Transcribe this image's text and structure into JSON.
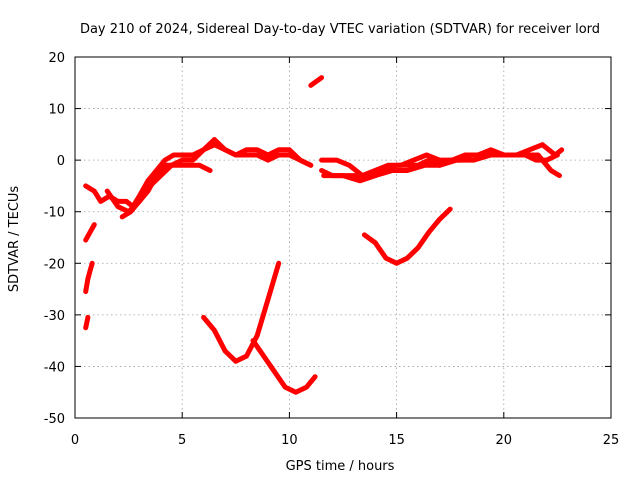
{
  "chart_data": {
    "type": "line",
    "title": "Day 210 of 2024, Sidereal Day-to-day VTEC variation (SDTVAR) for receiver lord",
    "xlabel": "GPS time / hours",
    "ylabel": "SDTVAR / TECUs",
    "xlim": [
      0,
      25
    ],
    "ylim": [
      -50,
      20
    ],
    "xticks": [
      0,
      5,
      10,
      15,
      20,
      25
    ],
    "yticks": [
      -50,
      -40,
      -30,
      -20,
      -10,
      0,
      10,
      20
    ],
    "grid": true,
    "color": "#ff0000",
    "series": [
      {
        "name": "band-early-1",
        "x": [
          0.5,
          0.9,
          1.2,
          1.6,
          2.0,
          2.4,
          2.7,
          3.0,
          3.4,
          3.8,
          4.2,
          4.6,
          5.0,
          5.5,
          6.0,
          6.5,
          7.0,
          7.5,
          8.0,
          8.5,
          9.0,
          9.5,
          10.0,
          10.5,
          11.0
        ],
        "y": [
          -5,
          -6,
          -8,
          -7,
          -8,
          -8,
          -9,
          -7,
          -4,
          -2,
          0,
          1,
          1,
          1,
          2,
          3,
          2,
          1,
          1,
          1,
          0,
          1,
          1,
          0,
          -1
        ]
      },
      {
        "name": "band-early-2",
        "x": [
          1.5,
          2.0,
          2.5,
          3.0,
          3.5,
          4.0,
          4.5,
          5.0,
          5.5,
          6.0,
          6.5,
          7.0,
          7.5,
          8.0,
          8.5,
          9.0,
          9.5,
          10.0,
          10.5,
          11.0
        ],
        "y": [
          -6,
          -9,
          -10,
          -8,
          -5,
          -3,
          -1,
          0,
          0,
          2,
          4,
          2,
          1,
          2,
          2,
          1,
          2,
          2,
          0,
          -1
        ]
      },
      {
        "name": "band-early-3",
        "x": [
          2.2,
          2.6,
          3.0,
          3.4,
          3.8,
          4.2,
          4.8,
          5.3,
          5.8,
          6.3
        ],
        "y": [
          -11,
          -10,
          -8,
          -6,
          -3,
          -1,
          -1,
          -1,
          -1,
          -2
        ]
      },
      {
        "name": "band-late-1",
        "x": [
          11.5,
          12.0,
          12.5,
          13.0,
          13.5,
          14.0,
          14.5,
          15.0,
          15.5,
          16.0,
          16.5,
          17.0,
          17.5,
          18.0,
          18.5,
          19.0,
          19.5,
          20.0,
          20.5,
          21.0,
          21.5,
          22.0,
          22.5
        ],
        "y": [
          -2,
          -3,
          -3,
          -3,
          -3,
          -3,
          -2,
          -1,
          -1,
          -1,
          0,
          -1,
          0,
          0,
          1,
          1,
          1,
          1,
          1,
          1,
          0,
          0,
          1
        ]
      },
      {
        "name": "band-late-2",
        "x": [
          11.5,
          12.2,
          12.8,
          13.4,
          14.0,
          14.6,
          15.2,
          15.8,
          16.4,
          17.0,
          17.6,
          18.2,
          18.8,
          19.4,
          20.0,
          20.6,
          21.2,
          21.8,
          22.4,
          22.7
        ],
        "y": [
          0,
          0,
          -1,
          -3,
          -2,
          -1,
          -1,
          0,
          1,
          0,
          0,
          1,
          1,
          2,
          1,
          1,
          2,
          3,
          1,
          2
        ]
      },
      {
        "name": "band-late-3",
        "x": [
          11.6,
          12.5,
          13.3,
          14.0,
          14.8,
          15.5,
          16.3,
          17.0,
          17.8,
          18.6,
          19.4,
          20.2,
          21.0,
          21.6,
          22.2,
          22.6
        ],
        "y": [
          -3,
          -3,
          -4,
          -3,
          -2,
          -2,
          -1,
          -1,
          0,
          0,
          1,
          1,
          1,
          1,
          -2,
          -3
        ]
      },
      {
        "name": "seg-upper-right",
        "x": [
          11.0,
          11.5
        ],
        "y": [
          14.5,
          16
        ]
      },
      {
        "name": "seg-left-1",
        "x": [
          0.5,
          0.7,
          0.9
        ],
        "y": [
          -15.5,
          -14,
          -12.5
        ]
      },
      {
        "name": "seg-left-2",
        "x": [
          0.5,
          0.6,
          0.7,
          0.8
        ],
        "y": [
          -25.5,
          -23,
          -21.5,
          -20
        ]
      },
      {
        "name": "seg-left-3",
        "x": [
          0.5,
          0.6
        ],
        "y": [
          -32.5,
          -30.5
        ]
      },
      {
        "name": "arc-a",
        "x": [
          6.0,
          6.5,
          7.0,
          7.5,
          8.0,
          8.5,
          9.0,
          9.5
        ],
        "y": [
          -30.5,
          -33,
          -37,
          -39,
          -38,
          -34,
          -27,
          -20
        ]
      },
      {
        "name": "arc-b",
        "x": [
          8.3,
          8.8,
          9.3,
          9.8,
          10.3,
          10.8,
          11.2
        ],
        "y": [
          -35,
          -38,
          -41,
          -44,
          -45,
          -44,
          -42
        ]
      },
      {
        "name": "arc-c",
        "x": [
          13.5,
          14.0,
          14.5,
          15.0,
          15.5,
          16.0,
          16.5,
          17.0,
          17.5
        ],
        "y": [
          -14.5,
          -16,
          -19,
          -20,
          -19,
          -17,
          -14,
          -11.5,
          -9.5
        ]
      }
    ]
  }
}
